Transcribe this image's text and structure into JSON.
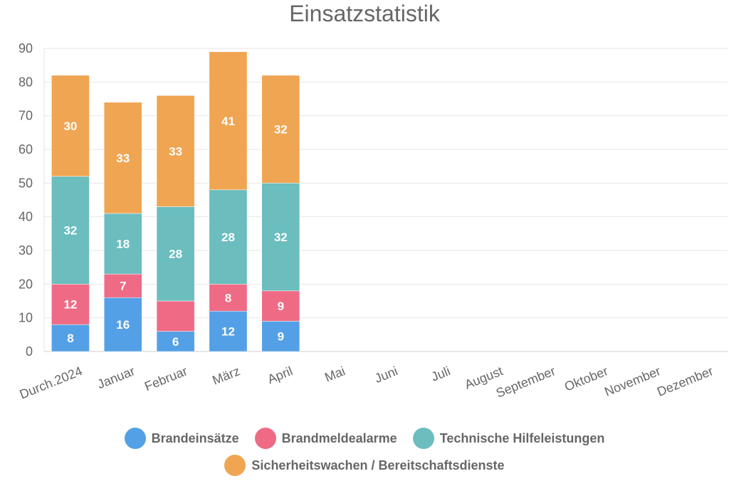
{
  "chart_data": {
    "type": "bar",
    "stacked": true,
    "title": "Einsatzstatistik",
    "categories": [
      "Durch.2024",
      "Januar",
      "Februar",
      "März",
      "April",
      "Mai",
      "Juni",
      "Juli",
      "August",
      "September",
      "Oktober",
      "November",
      "Dezember"
    ],
    "series": [
      {
        "name": "Brandeinsätze",
        "color": "#54a0e6",
        "values": [
          8,
          16,
          6,
          12,
          9,
          null,
          null,
          null,
          null,
          null,
          null,
          null,
          null
        ],
        "labels": [
          "8",
          "16",
          "6",
          "12",
          "9"
        ]
      },
      {
        "name": "Brandmeldealarme",
        "color": "#ef6b85",
        "values": [
          12,
          7,
          9,
          8,
          9,
          null,
          null,
          null,
          null,
          null,
          null,
          null,
          null
        ],
        "labels": [
          "12",
          "7",
          "",
          "8",
          "9"
        ]
      },
      {
        "name": "Technische Hilfeleistungen",
        "color": "#6bbdbe",
        "values": [
          32,
          18,
          28,
          28,
          32,
          null,
          null,
          null,
          null,
          null,
          null,
          null,
          null
        ],
        "labels": [
          "32",
          "18",
          "28",
          "28",
          "32"
        ]
      },
      {
        "name": "Sicherheitswachen / Bereitschaftsdienste",
        "color": "#f0a553",
        "values": [
          30,
          33,
          33,
          41,
          32,
          null,
          null,
          null,
          null,
          null,
          null,
          null,
          null
        ],
        "labels": [
          "30",
          "33",
          "33",
          "41",
          "32"
        ]
      }
    ],
    "ylim": [
      0,
      90
    ],
    "yticks": [
      "0",
      "10",
      "20",
      "30",
      "40",
      "50",
      "60",
      "70",
      "80",
      "90"
    ],
    "grid": true,
    "legend_position": "bottom"
  }
}
